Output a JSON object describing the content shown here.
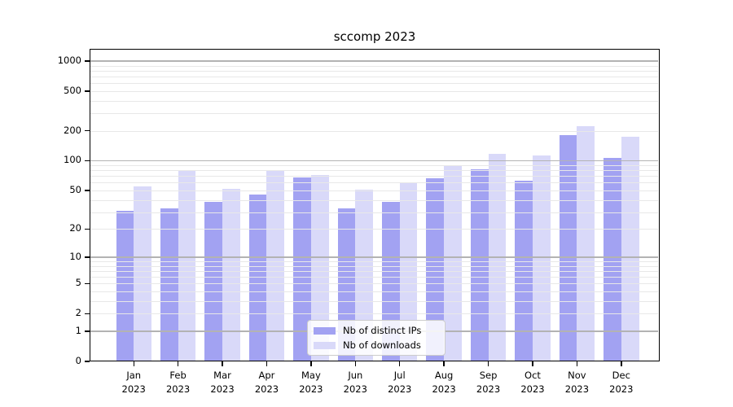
{
  "title": "sccomp 2023",
  "chart_data": {
    "type": "bar",
    "title": "sccomp 2023",
    "categories": [
      "Jan",
      "Feb",
      "Mar",
      "Apr",
      "May",
      "Jun",
      "Jul",
      "Aug",
      "Sep",
      "Oct",
      "Nov",
      "Dec"
    ],
    "category_year": "2023",
    "series": [
      {
        "name": "Nb of distinct IPs",
        "color": "#a2a2f2",
        "values": [
          31,
          33,
          38,
          45,
          68,
          33,
          38,
          66,
          82,
          63,
          181,
          106
        ]
      },
      {
        "name": "Nb of downloads",
        "color": "#d9d9f9",
        "values": [
          55,
          79,
          52,
          79,
          72,
          51,
          61,
          88,
          117,
          113,
          223,
          175
        ]
      }
    ],
    "xlabel": "",
    "ylabel": "",
    "yscale": "log1p",
    "ylim": [
      0,
      1324
    ],
    "yticks": [
      0,
      1,
      2,
      5,
      10,
      20,
      50,
      100,
      200,
      500,
      1000
    ],
    "major_gridlines": [
      1,
      10,
      100,
      1000
    ],
    "minor_gridlines": [
      2,
      3,
      4,
      5,
      6,
      7,
      8,
      9,
      20,
      30,
      40,
      50,
      60,
      70,
      80,
      90,
      200,
      300,
      400,
      500,
      600,
      700,
      800,
      900
    ],
    "grid": true,
    "grid_over_bars": true,
    "legend_position": "lower center",
    "style": {
      "axis_color": "#000000",
      "grid_major_color": "#b3b3b3",
      "grid_minor_color": "#e8e8e8",
      "legend_border_color": "#cccccc",
      "background_color": "#ffffff"
    }
  }
}
